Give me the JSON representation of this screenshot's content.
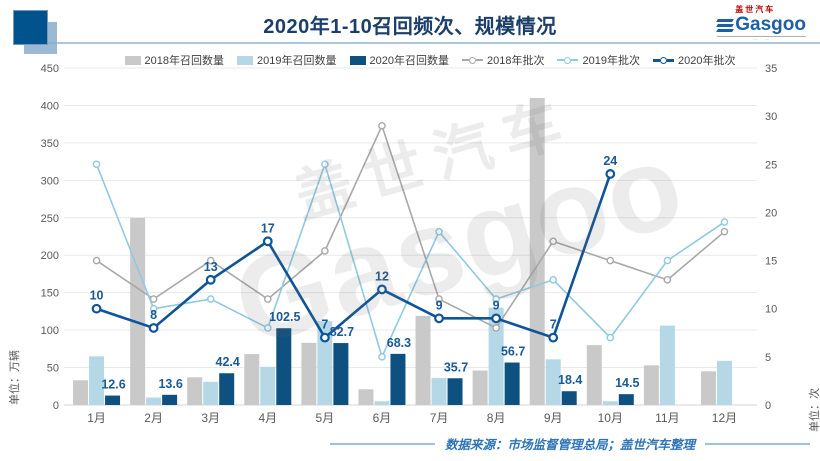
{
  "header": {
    "title": "2020年1-10召回频次、规模情况",
    "logo": {
      "brand_cn": "盖世汽车",
      "brand_en": "Gasgoo"
    }
  },
  "watermark": {
    "cn": "盖世汽车",
    "en": "Gasgoo"
  },
  "footer": {
    "source": "数据来源：市场监督管理总局；盖世汽车整理"
  },
  "chart_data": {
    "type": "bar+line combo, dual axis",
    "categories": [
      "1月",
      "2月",
      "3月",
      "4月",
      "5月",
      "6月",
      "7月",
      "8月",
      "9月",
      "10月",
      "11月",
      "12月"
    ],
    "left_axis": {
      "label": "单位：万辆",
      "min": 0,
      "max": 450,
      "step": 50
    },
    "right_axis": {
      "label": "单位：次",
      "min": 0,
      "max": 35,
      "step": 5
    },
    "grid": "horizontal",
    "legend_position": "top-center",
    "label_color": "#1a5a96",
    "bar_series": [
      {
        "name": "2018年召回数量",
        "axis": "left",
        "color": "#c9c9c9",
        "values": [
          33,
          250,
          37,
          68,
          83,
          21,
          119,
          46,
          410,
          80,
          53,
          45
        ],
        "labels_shown": false
      },
      {
        "name": "2019年召回数量",
        "axis": "left",
        "color": "#b5d8e6",
        "values": [
          65,
          10,
          31,
          51,
          112,
          5,
          36,
          130,
          61,
          5,
          106,
          59
        ],
        "labels_shown": false
      },
      {
        "name": "2020年召回数量",
        "axis": "left",
        "color": "#0e5181",
        "values": [
          12.6,
          13.6,
          42.4,
          102.5,
          82.7,
          68.3,
          35.7,
          56.7,
          18.4,
          14.5,
          null,
          null
        ],
        "labels_shown": true
      }
    ],
    "line_series": [
      {
        "name": "2018年批次",
        "axis": "right",
        "color": "#a8a8a8",
        "values": [
          15,
          11,
          15,
          11,
          16,
          29,
          11,
          8,
          17,
          15,
          13,
          18
        ],
        "labels_shown": false
      },
      {
        "name": "2019年批次",
        "axis": "right",
        "color": "#8ecae0",
        "values": [
          25,
          10,
          11,
          8,
          25,
          5,
          18,
          11,
          13,
          7,
          15,
          19
        ],
        "labels_shown": false
      },
      {
        "name": "2020年批次",
        "axis": "right",
        "color": "#0f5499",
        "values": [
          10,
          8,
          13,
          17,
          7,
          12,
          9,
          9,
          7,
          24,
          null,
          null
        ],
        "labels_shown": true
      }
    ]
  }
}
